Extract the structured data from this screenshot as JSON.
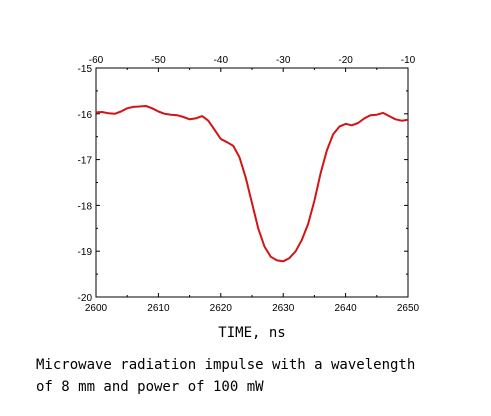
{
  "colors": {
    "series": "#d41414",
    "axis": "#000000"
  },
  "chart_data": {
    "type": "line",
    "title": "",
    "xlabel": "TIME, ns",
    "ylabel": "",
    "xlim": [
      2600,
      2650
    ],
    "ylim": [
      -20,
      -15
    ],
    "x_ticks": [
      "2600",
      "2610",
      "2620",
      "2630",
      "2640",
      "2650"
    ],
    "y_ticks": [
      "-15",
      "-16",
      "-17",
      "-18",
      "-19",
      "-20"
    ],
    "top_axis": {
      "xlim": [
        -60,
        -10
      ],
      "ticks": [
        "-60",
        "-50",
        "-40",
        "-30",
        "-20",
        "-10"
      ]
    },
    "series": [
      {
        "x": [
          2600,
          2601,
          2602,
          2603,
          2604,
          2605,
          2606,
          2607,
          2608,
          2609,
          2610,
          2611,
          2612,
          2613,
          2614,
          2615,
          2616,
          2617,
          2618,
          2619,
          2620,
          2621,
          2622,
          2623,
          2624,
          2625,
          2626,
          2627,
          2628,
          2629,
          2630,
          2631,
          2632,
          2633,
          2634,
          2635,
          2636,
          2637,
          2638,
          2639,
          2640,
          2641,
          2642,
          2643,
          2644,
          2645,
          2646,
          2647,
          2648,
          2649,
          2650
        ],
        "y": [
          -15.97,
          -15.96,
          -15.99,
          -16.0,
          -15.95,
          -15.88,
          -15.85,
          -15.84,
          -15.83,
          -15.88,
          -15.95,
          -16.0,
          -16.02,
          -16.03,
          -16.07,
          -16.12,
          -16.1,
          -16.05,
          -16.15,
          -16.35,
          -16.55,
          -16.62,
          -16.7,
          -16.95,
          -17.4,
          -17.95,
          -18.5,
          -18.9,
          -19.12,
          -19.2,
          -19.22,
          -19.15,
          -19.0,
          -18.75,
          -18.4,
          -17.9,
          -17.3,
          -16.8,
          -16.45,
          -16.28,
          -16.22,
          -16.25,
          -16.2,
          -16.1,
          -16.03,
          -16.02,
          -15.98,
          -16.05,
          -16.12,
          -16.15,
          -16.13
        ]
      }
    ]
  },
  "caption": {
    "line1": "Microwave radiation impulse with a wavelength",
    "line2": "of 8 mm and power of 100 mW"
  }
}
